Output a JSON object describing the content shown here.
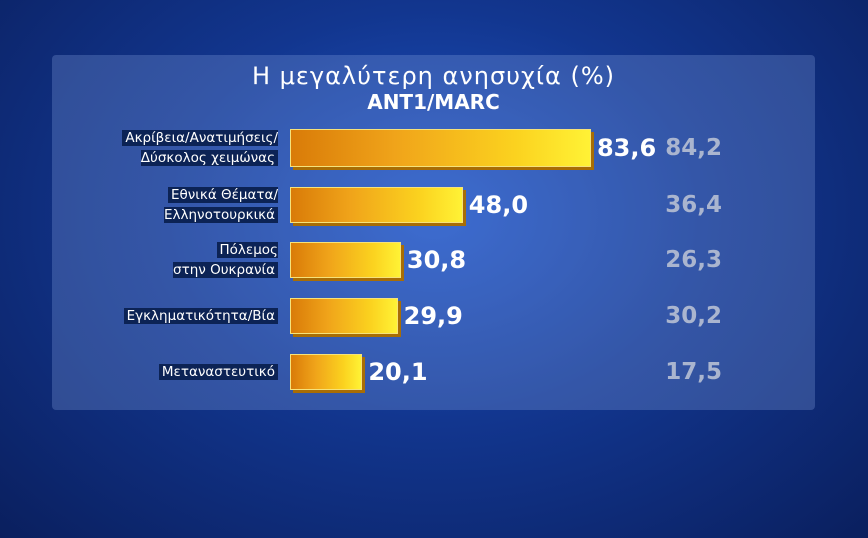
{
  "chart_data": {
    "type": "bar",
    "title": "Η μεγαλύτερη ανησυχία (%)",
    "subtitle": "ANT1/MARC",
    "categories": [
      "Ακρίβεια/Ανατιμήσεις/\nΔύσκολος χειμώνας",
      "Εθνικά Θέματα/\nΕλληνοτουρκικά",
      "Πόλεμος\nστην Ουκρανία",
      "Εγκληματικότητα/Βία",
      "Μεταναστευτικό"
    ],
    "series": [
      {
        "color": "#f5b418",
        "values": [
          83.6,
          48.0,
          30.8,
          29.9,
          20.1
        ],
        "value_labels": [
          "83,6",
          "48,0",
          "30,8",
          "29,9",
          "20,1"
        ]
      },
      {
        "color": "#aab5cf",
        "values": [
          84.2,
          36.4,
          26.3,
          30.2,
          17.5
        ],
        "value_labels": [
          "84,2",
          "36,4",
          "26,3",
          "30,2",
          "17,5"
        ]
      }
    ]
  }
}
